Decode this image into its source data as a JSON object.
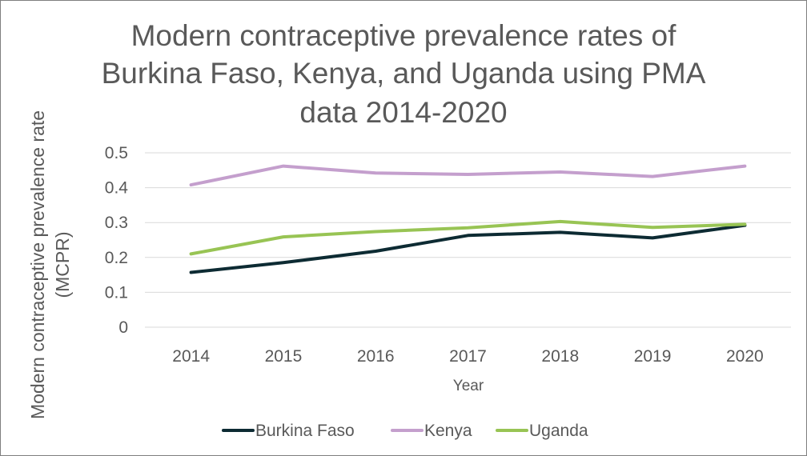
{
  "chart_data": {
    "type": "line",
    "title_lines": [
      "Modern contraceptive prevalence rates of",
      "Burkina Faso, Kenya, and Uganda using PMA",
      "data 2014-2020"
    ],
    "xlabel": "Year",
    "ylabel_lines": [
      "Modern contraceptive prevalence rate",
      "(MCPR)"
    ],
    "categories": [
      "2014",
      "2015",
      "2016",
      "2017",
      "2018",
      "2019",
      "2020"
    ],
    "yticks": [
      "0",
      "0.1",
      "0.2",
      "0.3",
      "0.4",
      "0.5"
    ],
    "ylim": [
      0,
      0.5
    ],
    "grid": true,
    "legend_position": "bottom",
    "series": [
      {
        "name": "Burkina Faso",
        "color": "#0d2b33",
        "values": [
          0.157,
          0.185,
          0.218,
          0.263,
          0.272,
          0.256,
          0.292
        ]
      },
      {
        "name": "Kenya",
        "color": "#c49fcd",
        "values": [
          0.408,
          0.462,
          0.442,
          0.438,
          0.445,
          0.432,
          0.462
        ]
      },
      {
        "name": "Uganda",
        "color": "#98c454",
        "values": [
          0.21,
          0.259,
          0.274,
          0.285,
          0.303,
          0.286,
          0.295
        ]
      }
    ]
  }
}
